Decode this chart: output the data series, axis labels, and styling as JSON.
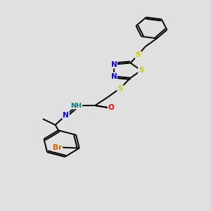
{
  "background_color": "#e0e0e0",
  "bond_color": "#000000",
  "bond_width": 1.4,
  "atom_colors": {
    "S": "#cccc00",
    "N": "#0000ff",
    "O": "#ff0000",
    "Br": "#cc6600",
    "H": "#008080",
    "C": "#000000"
  },
  "figsize": [
    3.0,
    3.0
  ],
  "dpi": 100
}
